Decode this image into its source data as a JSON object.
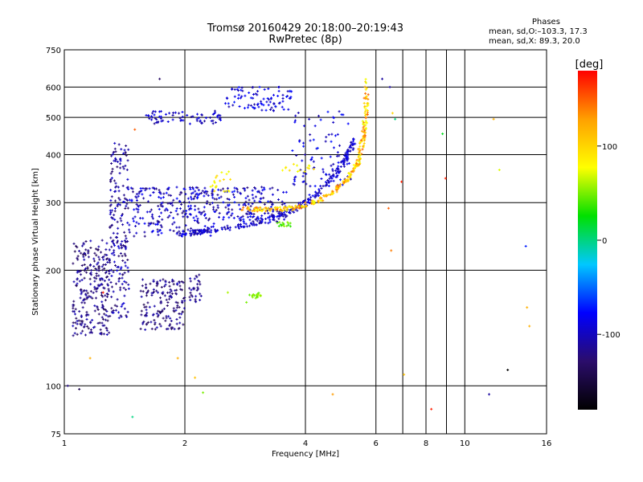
{
  "chart_data": {
    "type": "scatter",
    "title": "Tromsø 20160429 20:18:00–20:19:43",
    "subtitle": "RwPretec (8p)",
    "xlabel": "Frequency [MHz]",
    "ylabel": "Stationary phase Virtual Height [km]",
    "x_scale": "log",
    "y_scale": "log",
    "xlim": [
      1,
      16
    ],
    "ylim": [
      75,
      750
    ],
    "x_ticks": [
      1,
      2,
      4,
      6,
      8,
      10,
      16
    ],
    "x_gridlines": [
      1,
      2,
      4,
      6,
      7,
      8,
      9,
      10
    ],
    "y_ticks": [
      75,
      100,
      200,
      300,
      400,
      500,
      600,
      750
    ],
    "y_gridlines": [
      100,
      200,
      300,
      400,
      500,
      600
    ],
    "grid": true,
    "colorbar": {
      "label": "[deg]",
      "range": [
        -180,
        180
      ],
      "ticks": [
        100,
        0,
        -100
      ],
      "colormap": [
        "#000000",
        "#2b0d6b",
        "#0000ff",
        "#00c8ff",
        "#00e000",
        "#ffff00",
        "#ffa000",
        "#ff0000"
      ]
    },
    "stats": {
      "heading": "Phases",
      "line_o": "mean, sd,O:–103.3, 17.3",
      "line_x": "mean, sd,X: 89.3, 20.0"
    },
    "clusters": [
      {
        "f": [
          1.05,
          1.3
        ],
        "h": [
          135,
          240
        ],
        "phase": [
          -140,
          -100
        ],
        "n": 260
      },
      {
        "f": [
          1.3,
          1.45
        ],
        "h": [
          150,
          430
        ],
        "phase": [
          -130,
          -90
        ],
        "n": 200
      },
      {
        "f": [
          1.55,
          2.0
        ],
        "h": [
          140,
          190
        ],
        "phase": [
          -140,
          -100
        ],
        "n": 160
      },
      {
        "f": [
          2.05,
          2.2
        ],
        "h": [
          165,
          195
        ],
        "phase": [
          -130,
          -100
        ],
        "n": 30
      },
      {
        "f": [
          1.45,
          2.4
        ],
        "h": [
          245,
          330
        ],
        "phase": [
          -125,
          -75
        ],
        "n": 260
      },
      {
        "f": [
          2.4,
          3.6
        ],
        "h": [
          265,
          330
        ],
        "phase": [
          -125,
          -70
        ],
        "n": 160
      },
      {
        "f": [
          1.6,
          2.5
        ],
        "h": [
          480,
          520
        ],
        "phase": [
          -120,
          -80
        ],
        "n": 70
      },
      {
        "f": [
          2.5,
          3.7
        ],
        "h": [
          520,
          600
        ],
        "phase": [
          -110,
          -70
        ],
        "n": 90
      },
      {
        "f": [
          3.7,
          5.2
        ],
        "h": [
          330,
          520
        ],
        "phase": [
          -110,
          -70
        ],
        "n": 90
      },
      {
        "f": [
          2.9,
          3.1
        ],
        "h": [
          168,
          175
        ],
        "phase": [
          40,
          60
        ],
        "n": 18
      },
      {
        "f": [
          3.4,
          3.7
        ],
        "h": [
          260,
          268
        ],
        "phase": [
          30,
          55
        ],
        "n": 16
      },
      {
        "f": [
          2.3,
          2.6
        ],
        "h": [
          320,
          365
        ],
        "phase": [
          70,
          100
        ],
        "n": 20
      },
      {
        "f": [
          3.5,
          4.2
        ],
        "h": [
          360,
          380
        ],
        "phase": [
          70,
          100
        ],
        "n": 14
      }
    ],
    "o_trace": {
      "f": [
        1.9,
        2.2,
        2.6,
        3.1,
        3.6,
        4.0,
        4.4,
        4.8,
        5.1,
        5.3
      ],
      "h": [
        250,
        252,
        258,
        268,
        282,
        300,
        325,
        360,
        400,
        440
      ],
      "phase": [
        -110,
        -80
      ]
    },
    "x_trace": {
      "f": [
        2.8,
        3.2,
        3.7,
        4.2,
        4.7,
        5.1,
        5.4,
        5.55,
        5.65,
        5.7
      ],
      "h": [
        290,
        287,
        290,
        300,
        320,
        345,
        380,
        430,
        500,
        630
      ],
      "phase": [
        70,
        150
      ]
    },
    "sparse_points": {
      "f": [
        1.02,
        1.09,
        1.16,
        1.25,
        1.48,
        1.5,
        1.73,
        1.86,
        1.92,
        2.12,
        2.22,
        2.56,
        2.85,
        4.68,
        6.22,
        6.45,
        6.5,
        6.55,
        6.6,
        6.7,
        6.95,
        7.05,
        8.25,
        8.8,
        8.95,
        11.5,
        11.8,
        12.2,
        12.8,
        14.2,
        14.3,
        14.5
      ],
      "h": [
        100,
        98,
        118,
        175,
        83,
        465,
        630,
        300,
        118,
        105,
        96,
        175,
        165,
        95,
        630,
        290,
        600,
        225,
        513,
        495,
        340,
        107,
        87,
        453,
        347,
        95,
        495,
        365,
        110,
        231,
        160,
        143
      ],
      "phase": [
        -120,
        -140,
        120,
        170,
        0,
        150,
        -130,
        -110,
        120,
        110,
        50,
        60,
        50,
        130,
        -110,
        150,
        -110,
        140,
        100,
        0,
        170,
        110,
        170,
        20,
        170,
        -110,
        120,
        70,
        -180,
        -70,
        120,
        120
      ]
    }
  }
}
